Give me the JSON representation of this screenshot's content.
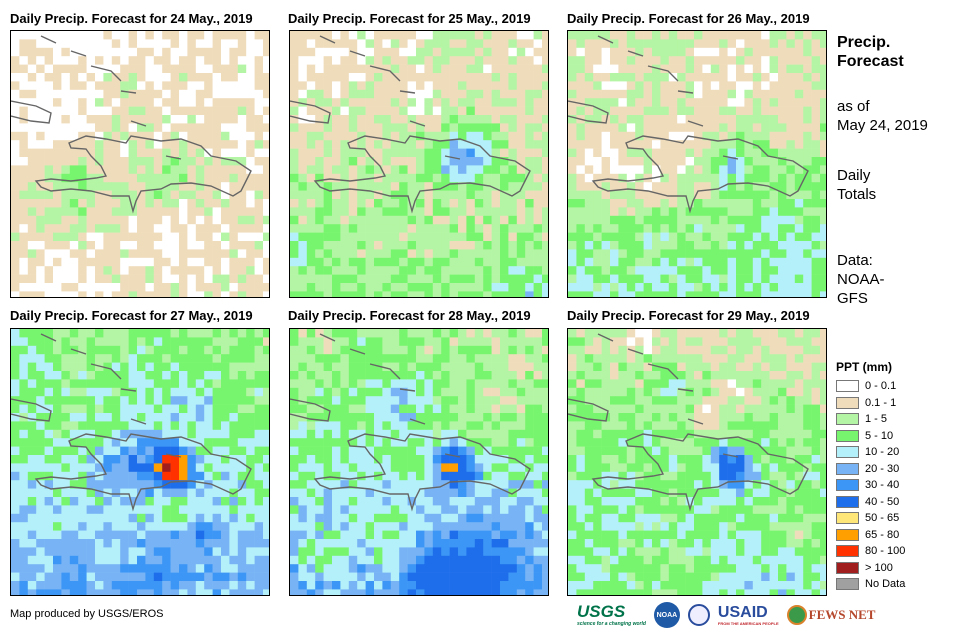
{
  "panels": [
    {
      "title": "Daily Precip. Forecast for 24 May., 2019"
    },
    {
      "title": "Daily Precip. Forecast for 25 May., 2019"
    },
    {
      "title": "Daily Precip. Forecast for 26 May., 2019"
    },
    {
      "title": "Daily Precip. Forecast for 27 May., 2019"
    },
    {
      "title": "Daily Precip. Forecast for 28 May., 2019"
    },
    {
      "title": "Daily Precip. Forecast for 29 May., 2019"
    }
  ],
  "side": {
    "title1": "Precip.",
    "title2": "Forecast",
    "asof1": "as of",
    "asof2": "May 24, 2019",
    "daily1": "Daily",
    "daily2": "Totals",
    "data1": "Data:",
    "data2": "NOAA-",
    "data3": "GFS"
  },
  "legend": {
    "title": "PPT (mm)",
    "items": [
      {
        "label": "0 - 0.1",
        "color": "#ffffff"
      },
      {
        "label": "0.1 - 1",
        "color": "#efdcbb"
      },
      {
        "label": "1 - 5",
        "color": "#b4f5a5"
      },
      {
        "label": "5 - 10",
        "color": "#78f56e"
      },
      {
        "label": "10 - 20",
        "color": "#b4f0fa"
      },
      {
        "label": "20 - 30",
        "color": "#78b4f5"
      },
      {
        "label": "30 - 40",
        "color": "#3c96f5"
      },
      {
        "label": "40 - 50",
        "color": "#1e6eeb"
      },
      {
        "label": "50 - 65",
        "color": "#ffe678"
      },
      {
        "label": "65 - 80",
        "color": "#ffa000"
      },
      {
        "label": "80 - 100",
        "color": "#ff3200"
      },
      {
        "label": "> 100",
        "color": "#a01e1e"
      },
      {
        "label": "No Data",
        "color": "#a0a0a0"
      }
    ]
  },
  "credit": "Map produced by USGS/EROS",
  "logos": {
    "usgs": "USGS",
    "usgs_tag": "science for a changing world",
    "noaa": "NOAA",
    "usaid": "USAID",
    "usaid_tag": "FROM THE AMERICAN PEOPLE",
    "fews": "FEWS NET"
  }
}
